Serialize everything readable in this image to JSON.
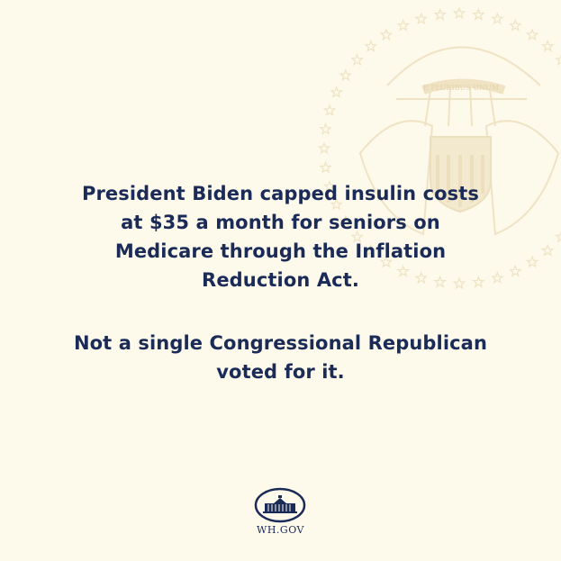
{
  "colors": {
    "background": "#fdf9eb",
    "text": "#1b2b57",
    "seal": "#efe3c4"
  },
  "seal": {
    "motto": "E PLURIBUS UNUM",
    "icon": "presidential-seal-watermark"
  },
  "message": {
    "paragraph1": [
      "President Biden capped insulin costs",
      "at $35 a month for seniors on",
      "Medicare through the Inflation",
      "Reduction Act."
    ],
    "paragraph2": [
      "Not a single Congressional Republican",
      "voted for it."
    ]
  },
  "footer": {
    "logo_icon": "white-house-icon",
    "label": "WH.GOV"
  }
}
